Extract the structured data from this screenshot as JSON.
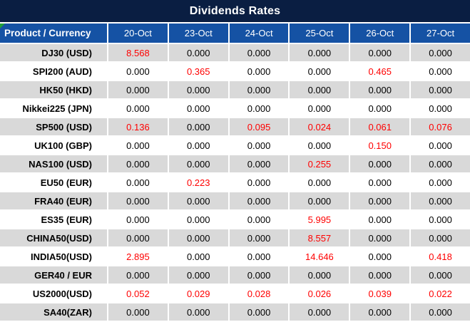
{
  "title": "Dividends Rates",
  "colors": {
    "title_bar_bg": "#0A1E42",
    "header_bg": "#1552A4",
    "stripe_gray": "#D9D9D9",
    "stripe_white": "#FFFFFF",
    "value_red": "#FF0000",
    "value_black": "#000000",
    "corner_marker_green": "#21A038"
  },
  "table": {
    "corner_label": "Product / Currency",
    "date_columns": [
      "20-Oct",
      "23-Oct",
      "24-Oct",
      "25-Oct",
      "26-Oct",
      "27-Oct"
    ],
    "rows": [
      {
        "label": "DJ30 (USD)",
        "values": [
          {
            "text": "8.568",
            "red": true
          },
          {
            "text": "0.000",
            "red": false
          },
          {
            "text": "0.000",
            "red": false
          },
          {
            "text": "0.000",
            "red": false
          },
          {
            "text": "0.000",
            "red": false
          },
          {
            "text": "0.000",
            "red": false
          }
        ]
      },
      {
        "label": "SPI200 (AUD)",
        "values": [
          {
            "text": "0.000",
            "red": false
          },
          {
            "text": "0.365",
            "red": true
          },
          {
            "text": "0.000",
            "red": false
          },
          {
            "text": "0.000",
            "red": false
          },
          {
            "text": "0.465",
            "red": true
          },
          {
            "text": "0.000",
            "red": false
          }
        ]
      },
      {
        "label": "HK50 (HKD)",
        "values": [
          {
            "text": "0.000",
            "red": false
          },
          {
            "text": "0.000",
            "red": false
          },
          {
            "text": "0.000",
            "red": false
          },
          {
            "text": "0.000",
            "red": false
          },
          {
            "text": "0.000",
            "red": false
          },
          {
            "text": "0.000",
            "red": false
          }
        ]
      },
      {
        "label": "Nikkei225 (JPN)",
        "values": [
          {
            "text": "0.000",
            "red": false
          },
          {
            "text": "0.000",
            "red": false
          },
          {
            "text": "0.000",
            "red": false
          },
          {
            "text": "0.000",
            "red": false
          },
          {
            "text": "0.000",
            "red": false
          },
          {
            "text": "0.000",
            "red": false
          }
        ]
      },
      {
        "label": "SP500 (USD)",
        "values": [
          {
            "text": "0.136",
            "red": true
          },
          {
            "text": "0.000",
            "red": false
          },
          {
            "text": "0.095",
            "red": true
          },
          {
            "text": "0.024",
            "red": true
          },
          {
            "text": "0.061",
            "red": true
          },
          {
            "text": "0.076",
            "red": true
          }
        ]
      },
      {
        "label": "UK100 (GBP)",
        "values": [
          {
            "text": "0.000",
            "red": false
          },
          {
            "text": "0.000",
            "red": false
          },
          {
            "text": "0.000",
            "red": false
          },
          {
            "text": "0.000",
            "red": false
          },
          {
            "text": "0.150",
            "red": true
          },
          {
            "text": "0.000",
            "red": false
          }
        ]
      },
      {
        "label": "NAS100 (USD)",
        "values": [
          {
            "text": "0.000",
            "red": false
          },
          {
            "text": "0.000",
            "red": false
          },
          {
            "text": "0.000",
            "red": false
          },
          {
            "text": "0.255",
            "red": true
          },
          {
            "text": "0.000",
            "red": false
          },
          {
            "text": "0.000",
            "red": false
          }
        ]
      },
      {
        "label": "EU50 (EUR)",
        "values": [
          {
            "text": "0.000",
            "red": false
          },
          {
            "text": "0.223",
            "red": true
          },
          {
            "text": "0.000",
            "red": false
          },
          {
            "text": "0.000",
            "red": false
          },
          {
            "text": "0.000",
            "red": false
          },
          {
            "text": "0.000",
            "red": false
          }
        ]
      },
      {
        "label": "FRA40 (EUR)",
        "values": [
          {
            "text": "0.000",
            "red": false
          },
          {
            "text": "0.000",
            "red": false
          },
          {
            "text": "0.000",
            "red": false
          },
          {
            "text": "0.000",
            "red": false
          },
          {
            "text": "0.000",
            "red": false
          },
          {
            "text": "0.000",
            "red": false
          }
        ]
      },
      {
        "label": "ES35 (EUR)",
        "values": [
          {
            "text": "0.000",
            "red": false
          },
          {
            "text": "0.000",
            "red": false
          },
          {
            "text": "0.000",
            "red": false
          },
          {
            "text": "5.995",
            "red": true
          },
          {
            "text": "0.000",
            "red": false
          },
          {
            "text": "0.000",
            "red": false
          }
        ]
      },
      {
        "label": "CHINA50(USD)",
        "values": [
          {
            "text": "0.000",
            "red": false
          },
          {
            "text": "0.000",
            "red": false
          },
          {
            "text": "0.000",
            "red": false
          },
          {
            "text": "8.557",
            "red": true
          },
          {
            "text": "0.000",
            "red": false
          },
          {
            "text": "0.000",
            "red": false
          }
        ]
      },
      {
        "label": "INDIA50(USD)",
        "values": [
          {
            "text": "2.895",
            "red": true
          },
          {
            "text": "0.000",
            "red": false
          },
          {
            "text": "0.000",
            "red": false
          },
          {
            "text": "14.646",
            "red": true
          },
          {
            "text": "0.000",
            "red": false
          },
          {
            "text": "0.418",
            "red": true
          }
        ]
      },
      {
        "label": "GER40 / EUR",
        "values": [
          {
            "text": "0.000",
            "red": false
          },
          {
            "text": "0.000",
            "red": false
          },
          {
            "text": "0.000",
            "red": false
          },
          {
            "text": "0.000",
            "red": false
          },
          {
            "text": "0.000",
            "red": false
          },
          {
            "text": "0.000",
            "red": false
          }
        ]
      },
      {
        "label": "US2000(USD)",
        "values": [
          {
            "text": "0.052",
            "red": true
          },
          {
            "text": "0.029",
            "red": true
          },
          {
            "text": "0.028",
            "red": true
          },
          {
            "text": "0.026",
            "red": true
          },
          {
            "text": "0.039",
            "red": true
          },
          {
            "text": "0.022",
            "red": true
          }
        ]
      },
      {
        "label": "SA40(ZAR)",
        "values": [
          {
            "text": "0.000",
            "red": false
          },
          {
            "text": "0.000",
            "red": false
          },
          {
            "text": "0.000",
            "red": false
          },
          {
            "text": "0.000",
            "red": false
          },
          {
            "text": "0.000",
            "red": false
          },
          {
            "text": "0.000",
            "red": false
          }
        ]
      }
    ]
  }
}
